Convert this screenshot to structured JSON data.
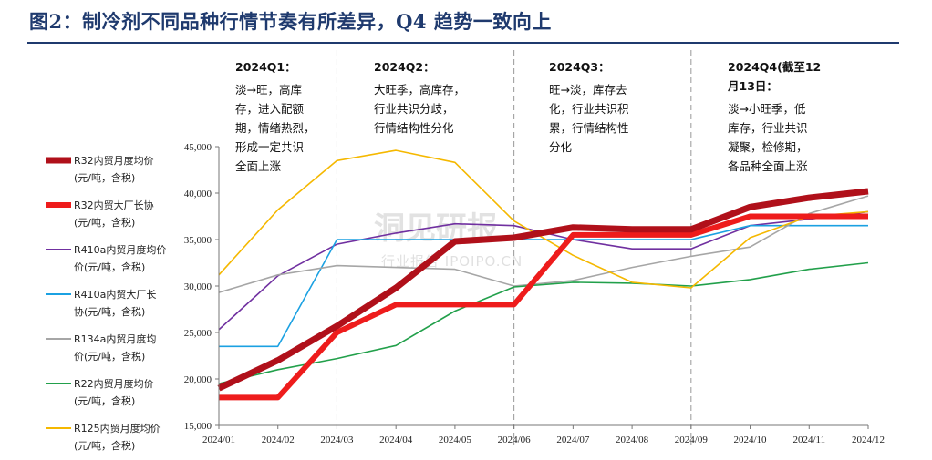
{
  "title": "图2：制冷剂不同品种行情节奏有所差异，Q4 趋势一致向上",
  "watermark": {
    "brand": "洞见研报",
    "sub": "行业报告 IPOIPO.CN"
  },
  "annotations": [
    {
      "head": [
        "2024Q1："
      ],
      "body": [
        "淡→旺，高库",
        "存，进入配额",
        "期，情绪热烈，",
        "形成一定共识",
        "全面上涨"
      ]
    },
    {
      "head": [
        "2024Q2："
      ],
      "body": [
        "大旺季，高库存，",
        "行业共识分歧，",
        "行情结构性分化"
      ]
    },
    {
      "head": [
        "2024Q3："
      ],
      "body": [
        "旺→淡，库存去",
        "化，行业共识积",
        "累，行情结构性",
        "分化"
      ]
    },
    {
      "head": [
        "2024Q4(截至12",
        "月13日："
      ],
      "body": [
        "淡→小旺季，低",
        "库存，行业共识",
        "凝聚，检修期，",
        "各品种全面上涨"
      ]
    }
  ],
  "chart_data": {
    "type": "line",
    "categories": [
      "2024/01",
      "2024/02",
      "2024/03",
      "2024/04",
      "2024/05",
      "2024/06",
      "2024/07",
      "2024/08",
      "2024/09",
      "2024/10",
      "2024/11",
      "2024/12"
    ],
    "ylim": [
      15000,
      45000
    ],
    "yticks": [
      15000,
      20000,
      25000,
      30000,
      35000,
      40000,
      45000
    ],
    "ytick_labels": [
      "15,000",
      "20,000",
      "25,000",
      "30,000",
      "35,000",
      "40,000",
      "45,000"
    ],
    "legend_position": "left",
    "quarter_dividers_after": [
      "2024/03",
      "2024/06",
      "2024/09"
    ],
    "series": [
      {
        "name": "R32内贸月度均价(元/吨，含税)",
        "legend_lines": [
          "R32内贸月度均价",
          "(元/吨，含税)"
        ],
        "color": "#b0101a",
        "width": 7,
        "values": [
          19000,
          22000,
          25700,
          29800,
          34800,
          35200,
          36300,
          36100,
          36100,
          38500,
          39500,
          40200
        ]
      },
      {
        "name": "R32内贸大厂长协(元/吨，含税)",
        "legend_lines": [
          "R32内贸大厂长协",
          "(元/吨，含税)"
        ],
        "color": "#ee1c1c",
        "width": 6,
        "values": [
          18000,
          18000,
          25000,
          28000,
          28000,
          28000,
          35500,
          35500,
          35500,
          37500,
          37500,
          37500
        ]
      },
      {
        "name": "R410a内贸月度均价(元/吨，含税)",
        "legend_lines": [
          "R410a内贸月度均价",
          "价(元/吨，含税)"
        ],
        "color": "#7030a0",
        "width": 1.6,
        "values": [
          25300,
          31100,
          34500,
          35700,
          36700,
          36500,
          35000,
          34000,
          34000,
          36500,
          37200,
          38000
        ]
      },
      {
        "name": "R410a内贸大厂长协(元/吨，含税)",
        "legend_lines": [
          "R410a内贸大厂长",
          "协(元/吨，含税)"
        ],
        "color": "#1ba1e2",
        "width": 1.6,
        "values": [
          23500,
          23500,
          35000,
          35000,
          35000,
          35000,
          35000,
          35000,
          35000,
          36500,
          36500,
          36500
        ]
      },
      {
        "name": "R134a内贸月度均价(元/吨，含税)",
        "legend_lines": [
          "R134a内贸月度均",
          "价(元/吨，含税)"
        ],
        "color": "#a6a6a6",
        "width": 1.6,
        "values": [
          29300,
          31200,
          32200,
          32000,
          31800,
          30000,
          30600,
          32000,
          33200,
          34200,
          37800,
          39700
        ]
      },
      {
        "name": "R22内贸月度均价(元/吨，含税)",
        "legend_lines": [
          "R22内贸月度均价",
          "(元/吨，含税)"
        ],
        "color": "#22a04b",
        "width": 1.6,
        "values": [
          19500,
          21000,
          22200,
          23600,
          27300,
          29900,
          30400,
          30300,
          30000,
          30700,
          31800,
          32500
        ]
      },
      {
        "name": "R125内贸月度均价(元/吨，含税)",
        "legend_lines": [
          "R125内贸月度均价",
          "(元/吨，含税)"
        ],
        "color": "#f5b800",
        "width": 1.6,
        "values": [
          31200,
          38200,
          43500,
          44600,
          43300,
          37000,
          33300,
          30400,
          29800,
          35200,
          37500,
          38000
        ]
      }
    ]
  }
}
